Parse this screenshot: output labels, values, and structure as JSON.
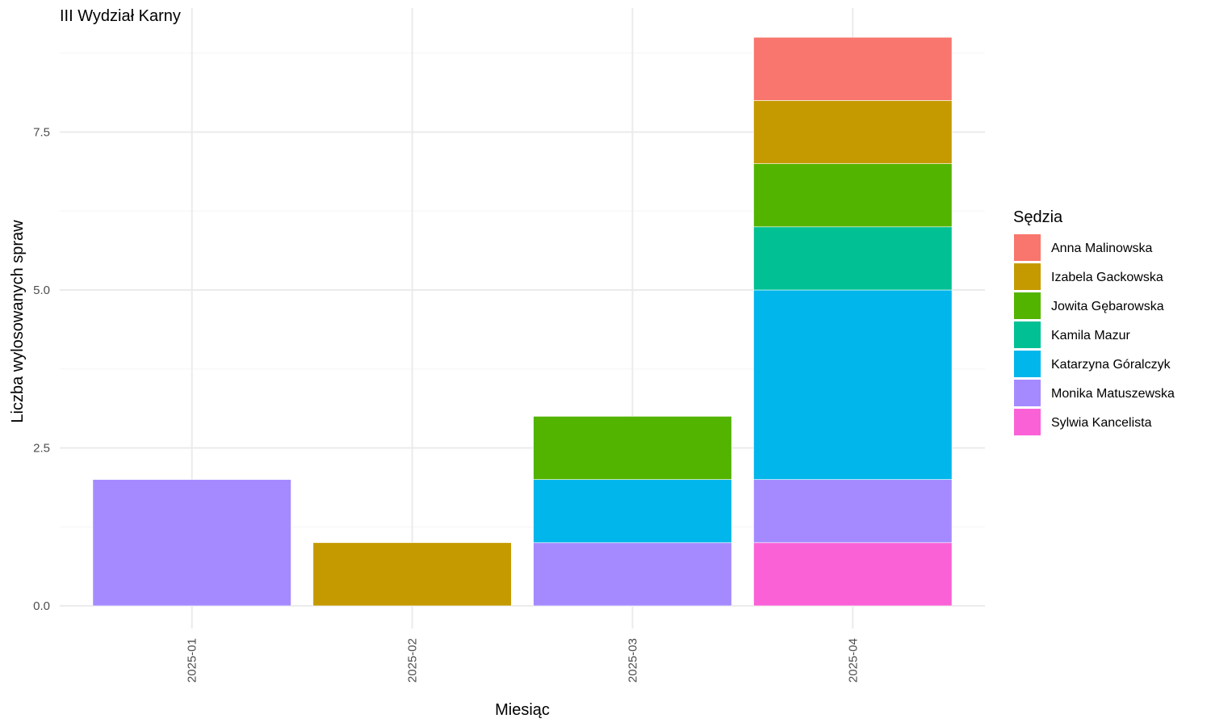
{
  "chart_data": {
    "type": "bar",
    "stacked": true,
    "title": "III Wydział Karny",
    "xlabel": "Miesiąc",
    "ylabel": "Liczba wylosowanych spraw",
    "categories": [
      "2025-01",
      "2025-02",
      "2025-03",
      "2025-04"
    ],
    "ylim": [
      0,
      9.25
    ],
    "yticks": [
      0,
      2.5,
      5,
      7.5
    ],
    "ytick_labels": [
      "0.0",
      "2.5",
      "5.0",
      "7.5"
    ],
    "grid": true,
    "legend": {
      "title": "Sędzia",
      "position": "right"
    },
    "series": [
      {
        "name": "Anna Malinowska",
        "color": "#F8766D",
        "values": [
          0,
          0,
          0,
          1
        ]
      },
      {
        "name": "Izabela Gackowska",
        "color": "#C49A00",
        "values": [
          0,
          1,
          0,
          1
        ]
      },
      {
        "name": "Jowita Gębarowska",
        "color": "#53B400",
        "values": [
          0,
          0,
          1,
          1
        ]
      },
      {
        "name": "Kamila Mazur",
        "color": "#00C094",
        "values": [
          0,
          0,
          0,
          1
        ]
      },
      {
        "name": "Katarzyna Góralczyk",
        "color": "#00B6EB",
        "values": [
          0,
          0,
          1,
          3
        ]
      },
      {
        "name": "Monika Matuszewska",
        "color": "#A58AFF",
        "values": [
          2,
          0,
          1,
          1
        ]
      },
      {
        "name": "Sylwia Kancelista",
        "color": "#FB61D7",
        "values": [
          0,
          0,
          0,
          1
        ]
      }
    ]
  }
}
